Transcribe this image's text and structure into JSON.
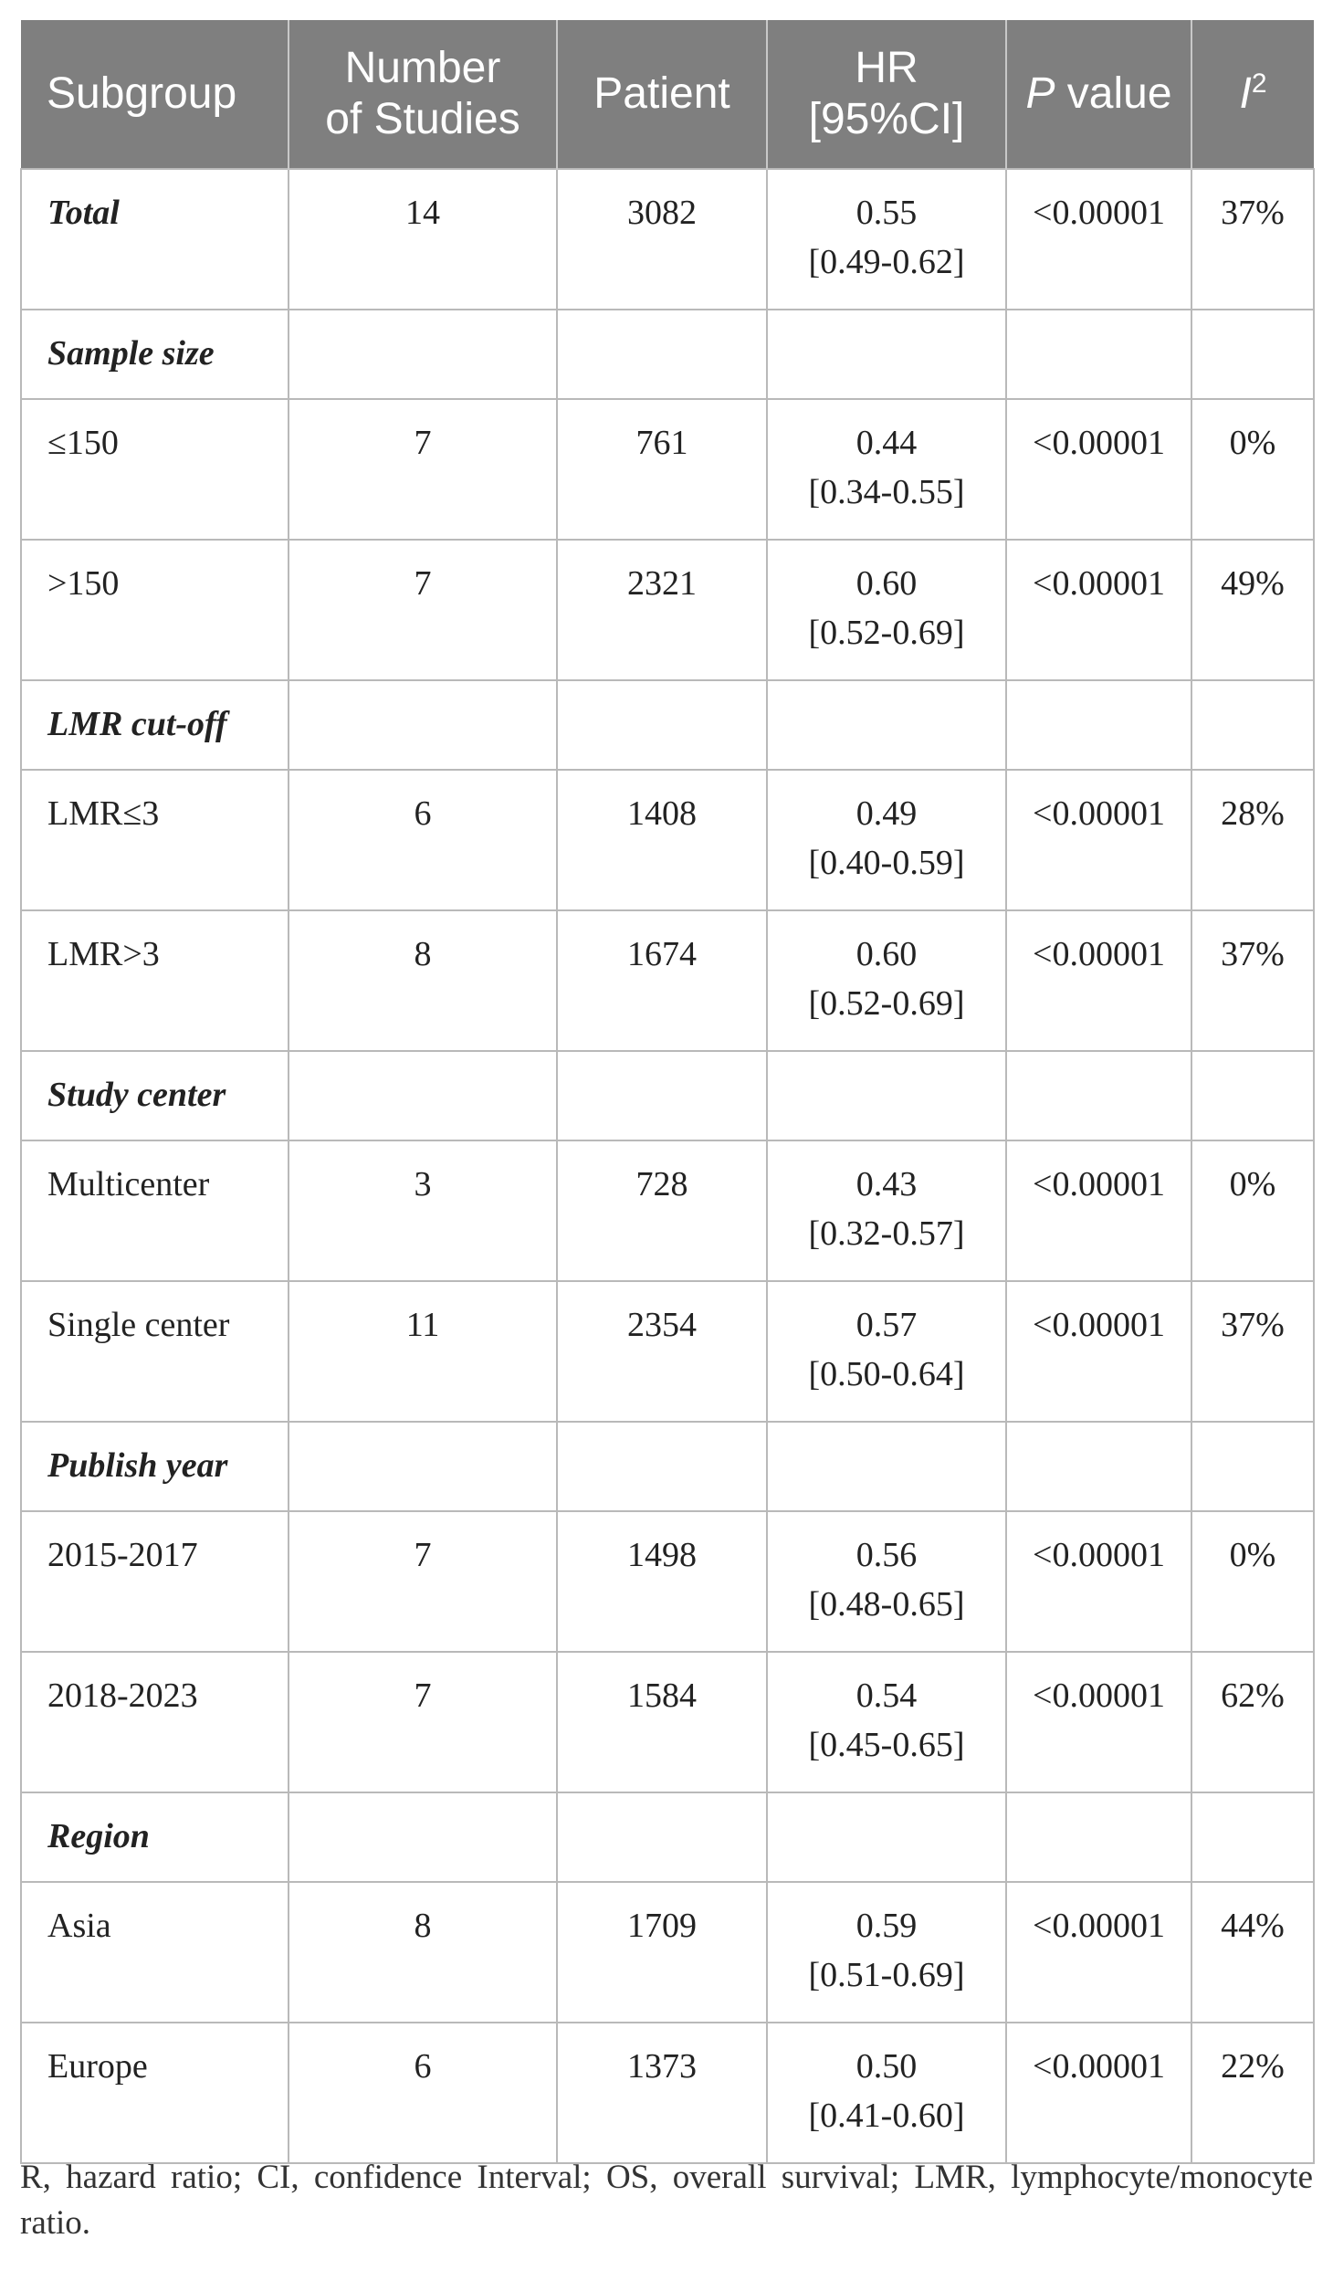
{
  "header": {
    "subgroup": "Subgroup",
    "studies_line1": "Number",
    "studies_line2": "of Studies",
    "patient": "Patient",
    "hr_line1": "HR",
    "hr_line2": "[95%CI]",
    "p_italic": "P",
    "p_rest": " value",
    "i2_base": "I",
    "i2_sup": "2"
  },
  "rows": [
    {
      "type": "data",
      "label": "Total",
      "bold": true,
      "studies": "14",
      "patient": "3082",
      "hr": "0.55",
      "ci": "[0.49-0.62]",
      "p": "<0.00001",
      "i2": "37%"
    },
    {
      "type": "group",
      "label": "Sample size"
    },
    {
      "type": "data",
      "label": "≤150",
      "studies": "7",
      "patient": "761",
      "hr": "0.44",
      "ci": "[0.34-0.55]",
      "p": "<0.00001",
      "i2": "0%"
    },
    {
      "type": "data",
      "label": ">150",
      "studies": "7",
      "patient": "2321",
      "hr": "0.60",
      "ci": "[0.52-0.69]",
      "p": "<0.00001",
      "i2": "49%"
    },
    {
      "type": "group",
      "label": "LMR cut-off"
    },
    {
      "type": "data",
      "label": "LMR≤3",
      "studies": "6",
      "patient": "1408",
      "hr": "0.49",
      "ci": "[0.40-0.59]",
      "p": "<0.00001",
      "i2": "28%"
    },
    {
      "type": "data",
      "label": "LMR>3",
      "studies": "8",
      "patient": "1674",
      "hr": "0.60",
      "ci": "[0.52-0.69]",
      "p": "<0.00001",
      "i2": "37%"
    },
    {
      "type": "group",
      "label": "Study center"
    },
    {
      "type": "data",
      "label": "Multicenter",
      "studies": "3",
      "patient": "728",
      "hr": "0.43",
      "ci": "[0.32-0.57]",
      "p": "<0.00001",
      "i2": "0%"
    },
    {
      "type": "data",
      "label": "Single center",
      "studies": "11",
      "patient": "2354",
      "hr": "0.57",
      "ci": "[0.50-0.64]",
      "p": "<0.00001",
      "i2": "37%"
    },
    {
      "type": "group",
      "label": "Publish year"
    },
    {
      "type": "data",
      "label": "2015-2017",
      "studies": "7",
      "patient": "1498",
      "hr": "0.56",
      "ci": "[0.48-0.65]",
      "p": "<0.00001",
      "i2": "0%"
    },
    {
      "type": "data",
      "label": "2018-2023",
      "studies": "7",
      "patient": "1584",
      "hr": "0.54",
      "ci": "[0.45-0.65]",
      "p": "<0.00001",
      "i2": "62%"
    },
    {
      "type": "group",
      "label": "Region"
    },
    {
      "type": "data",
      "label": "Asia",
      "studies": "8",
      "patient": "1709",
      "hr": "0.59",
      "ci": "[0.51-0.69]",
      "p": "<0.00001",
      "i2": "44%"
    },
    {
      "type": "data",
      "label": "Europe",
      "studies": "6",
      "patient": "1373",
      "hr": "0.50",
      "ci": "[0.41-0.60]",
      "p": "<0.00001",
      "i2": "22%"
    }
  ],
  "footnote": "R, hazard ratio; CI, confidence Interval; OS, overall survival; LMR, lymphocyte/monocyte ratio.",
  "colors": {
    "header_bg": "#7f7f7f",
    "header_text": "#ffffff",
    "grid": "#b9b9b9"
  }
}
